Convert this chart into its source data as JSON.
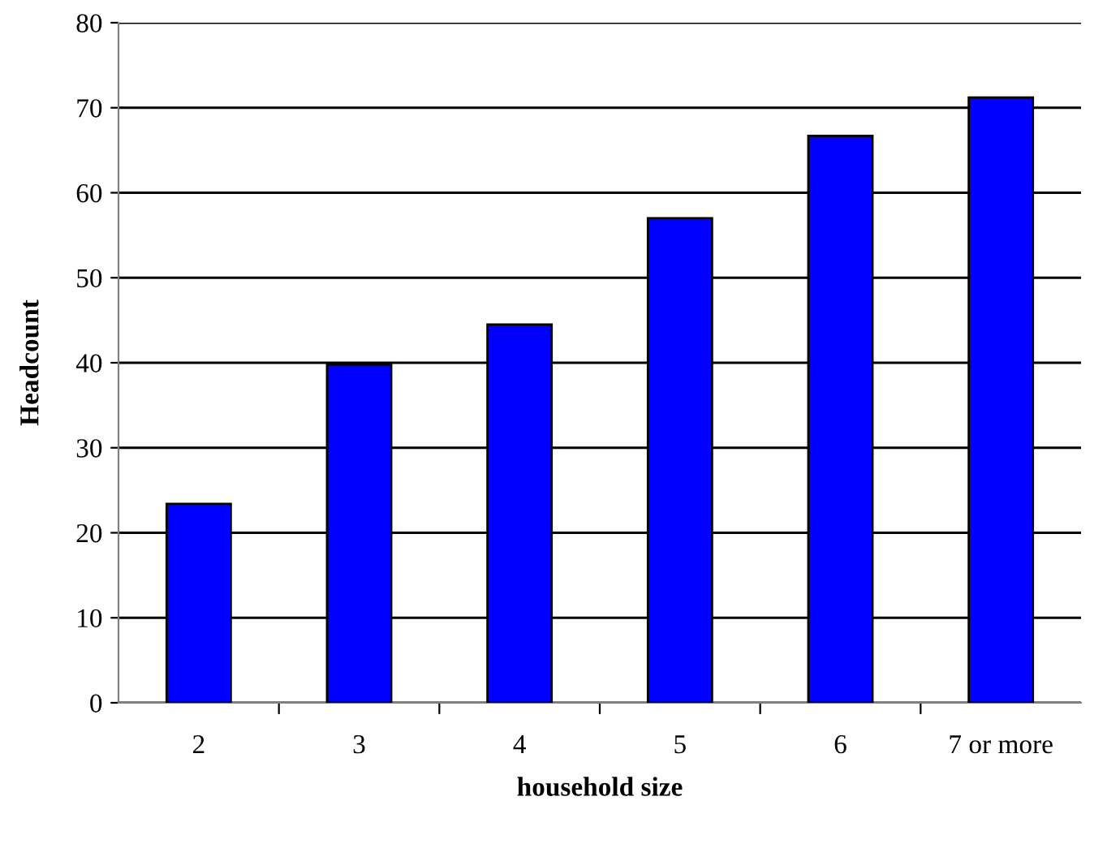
{
  "chart_data": {
    "type": "bar",
    "xlabel": "household size",
    "ylabel": "Headcount",
    "categories": [
      "2",
      "3",
      "4",
      "5",
      "6",
      "7 or more"
    ],
    "values": [
      23.4,
      39.8,
      44.5,
      57.0,
      66.7,
      71.2
    ],
    "color": "#0000ff",
    "ylim": [
      0,
      80
    ],
    "yticks": [
      0,
      10,
      20,
      30,
      40,
      50,
      60,
      70,
      80
    ],
    "grid": "y",
    "legend": false
  }
}
